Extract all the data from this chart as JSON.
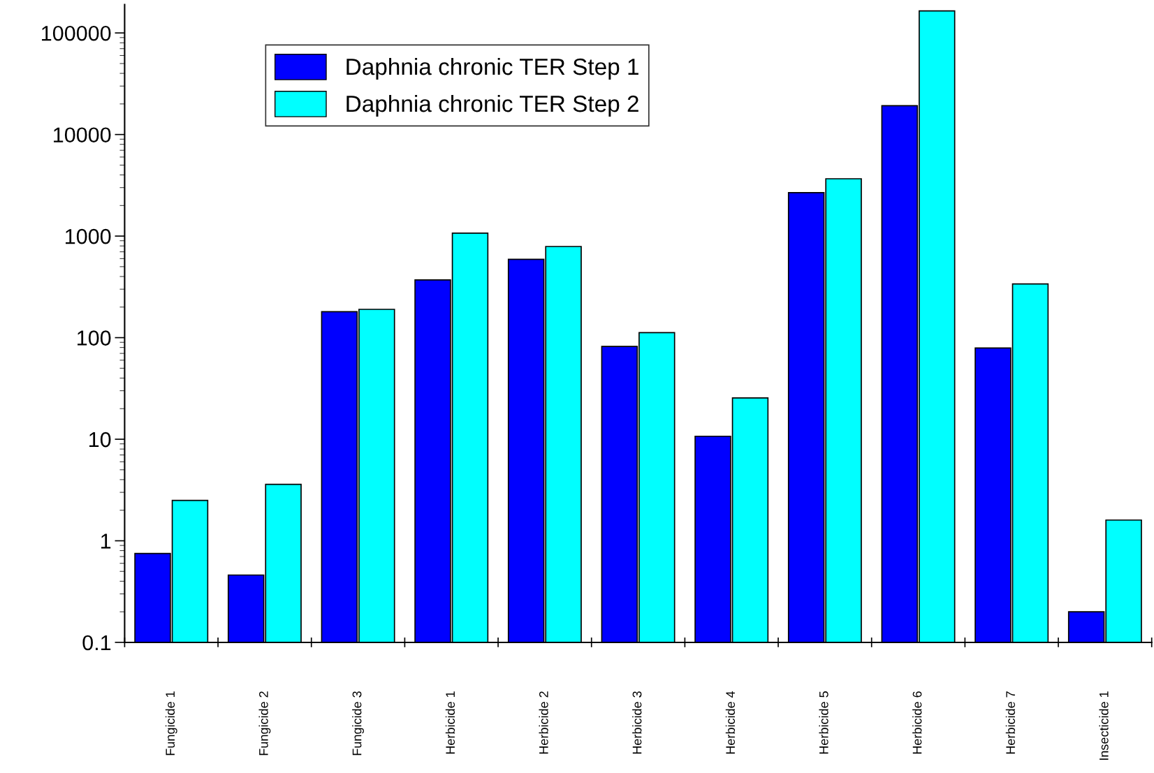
{
  "chart_data": {
    "type": "bar",
    "log": "y",
    "categories": [
      "Fungicide 1",
      "Fungicide 2",
      "Fungicide 3",
      "Herbicide 1",
      "Herbicide 2",
      "Herbicide 3",
      "Herbicide 4",
      "Herbicide 5",
      "Herbicide 6",
      "Herbicide 7",
      "Insecticide 1"
    ],
    "series": [
      {
        "name": "Daphnia chronic TER Step 1",
        "color": "#0000ff",
        "values": [
          0.75,
          0.46,
          180,
          370,
          590,
          82,
          10.7,
          2680,
          19200,
          79,
          0.2
        ]
      },
      {
        "name": "Daphnia chronic TER Step 2",
        "color": "#00ffff",
        "values": [
          2.5,
          3.6,
          190,
          1070,
          790,
          112,
          25.5,
          3670,
          165000,
          338,
          1.6
        ]
      }
    ],
    "ylim": [
      0.1,
      190000
    ],
    "yticks": [
      0.1,
      1,
      10,
      100,
      1000,
      10000,
      100000
    ],
    "grid": false,
    "legend": "top left"
  }
}
